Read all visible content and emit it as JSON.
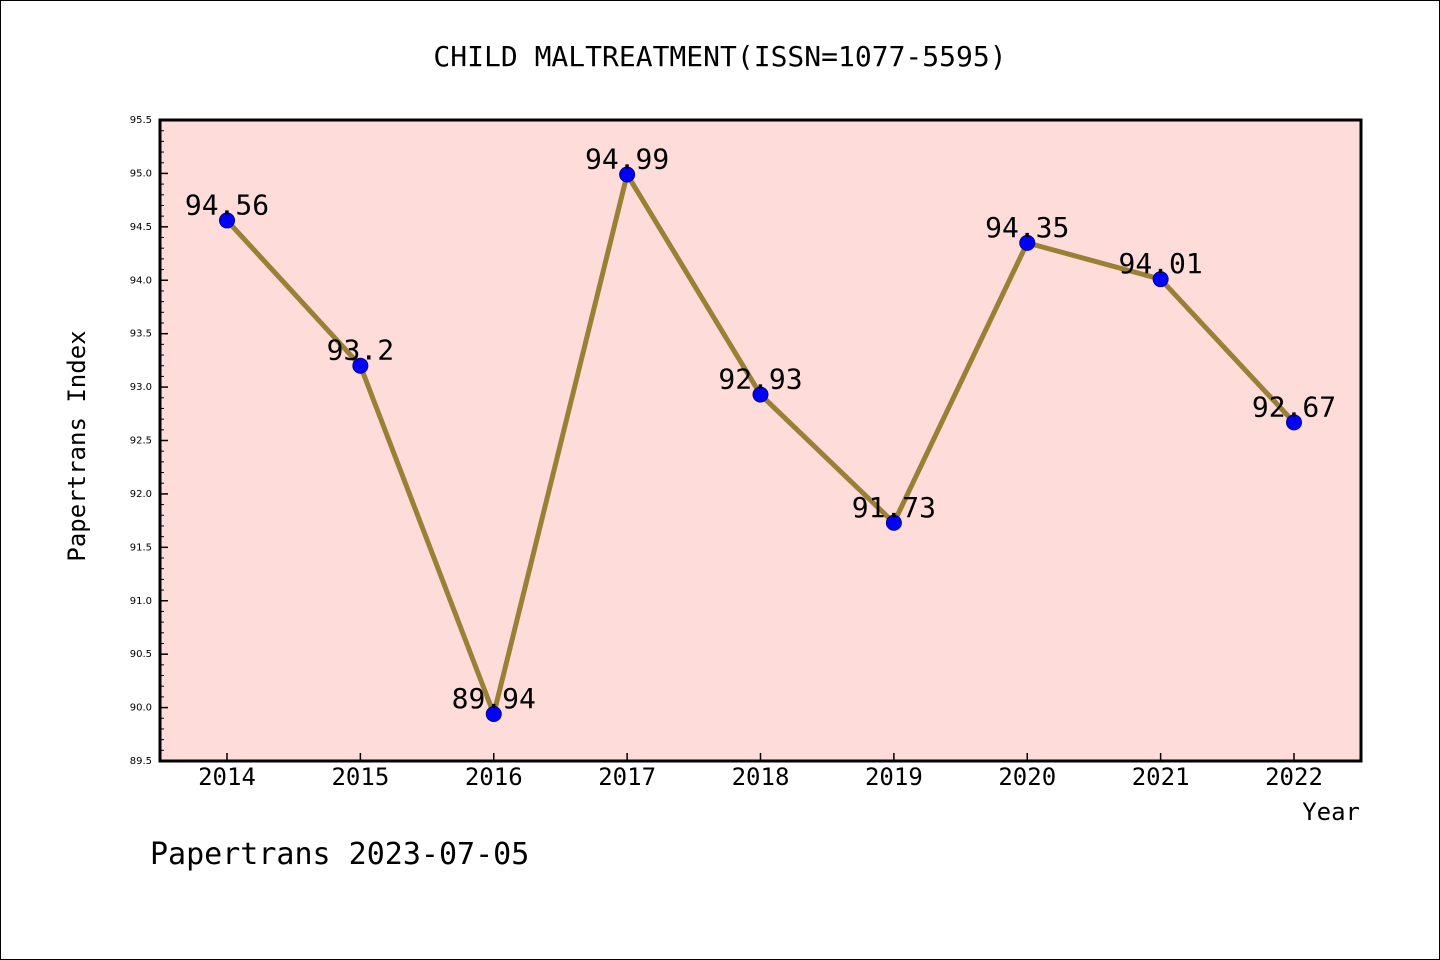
{
  "chart_data": {
    "type": "line",
    "title": "CHILD MALTREATMENT(ISSN=1077-5595)",
    "xlabel": "Year",
    "ylabel": "Papertrans Index",
    "categories": [
      "2014",
      "2015",
      "2016",
      "2017",
      "2018",
      "2019",
      "2020",
      "2021",
      "2022"
    ],
    "series": [
      {
        "values": [
          94.56,
          93.2,
          89.94,
          94.99,
          92.93,
          91.73,
          94.35,
          94.01,
          92.67
        ]
      }
    ],
    "data_labels": [
      "94.56",
      "93.2",
      "89.94",
      "94.99",
      "92.93",
      "91.73",
      "94.35",
      "94.01",
      "92.67"
    ],
    "ylim": [
      89.5,
      95.5
    ],
    "yticks": [
      "89.5",
      "90.0",
      "90.5",
      "91.0",
      "91.5",
      "92.0",
      "92.5",
      "93.0",
      "93.5",
      "94.0",
      "94.5",
      "95.0",
      "95.5"
    ],
    "grid": false,
    "colors": {
      "plot_background": "#fddcda",
      "line": "#9a8034",
      "marker": "#0000ff"
    }
  },
  "footer": {
    "watermark": "Papertrans 2023-07-05"
  }
}
